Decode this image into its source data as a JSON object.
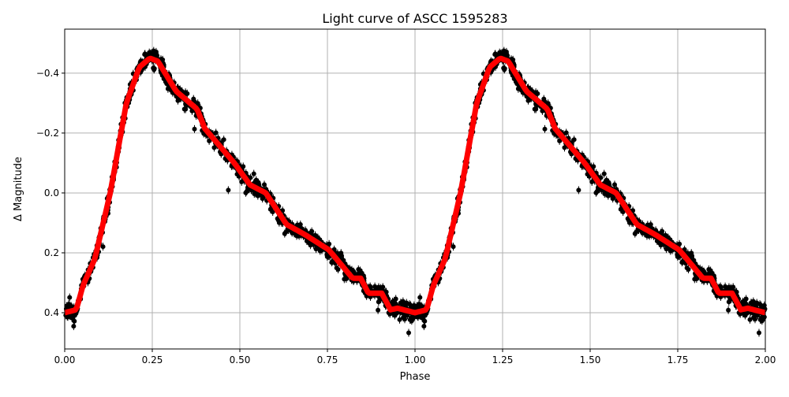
{
  "chart_data": {
    "type": "scatter",
    "title": "Light curve of ASCC 1595283",
    "xlabel": "Phase",
    "ylabel": "Δ Magnitude",
    "xlim": [
      0,
      2
    ],
    "ylim": [
      0.521,
      -0.547
    ],
    "y_inverted": true,
    "grid": true,
    "x_ticks": [
      "0.00",
      "0.25",
      "0.50",
      "0.75",
      "1.00",
      "1.25",
      "1.50",
      "1.75",
      "2.00"
    ],
    "x_tick_values": [
      0,
      0.25,
      0.5,
      0.75,
      1.0,
      1.25,
      1.5,
      1.75,
      2.0
    ],
    "y_ticks": [
      "−0.4",
      "−0.2",
      "0.0",
      "0.2",
      "0.4"
    ],
    "y_tick_values": [
      -0.4,
      -0.2,
      0.0,
      0.2,
      0.4
    ],
    "period_repeats": 2,
    "observations_color": "#000000",
    "model_color": "#ff0000",
    "model_curve": {
      "phase": [
        0.0,
        0.033,
        0.052,
        0.086,
        0.13,
        0.176,
        0.213,
        0.243,
        0.266,
        0.318,
        0.378,
        0.4,
        0.484,
        0.529,
        0.574,
        0.633,
        0.687,
        0.754,
        0.822,
        0.845,
        0.867,
        0.905,
        0.93,
        0.95,
        1.0
      ],
      "dmag": [
        0.4,
        0.39,
        0.31,
        0.22,
        0.0,
        -0.3,
        -0.42,
        -0.45,
        -0.44,
        -0.34,
        -0.28,
        -0.215,
        -0.1,
        -0.027,
        0.0,
        0.105,
        0.14,
        0.19,
        0.285,
        0.285,
        0.335,
        0.335,
        0.39,
        0.385,
        0.4
      ]
    }
  }
}
